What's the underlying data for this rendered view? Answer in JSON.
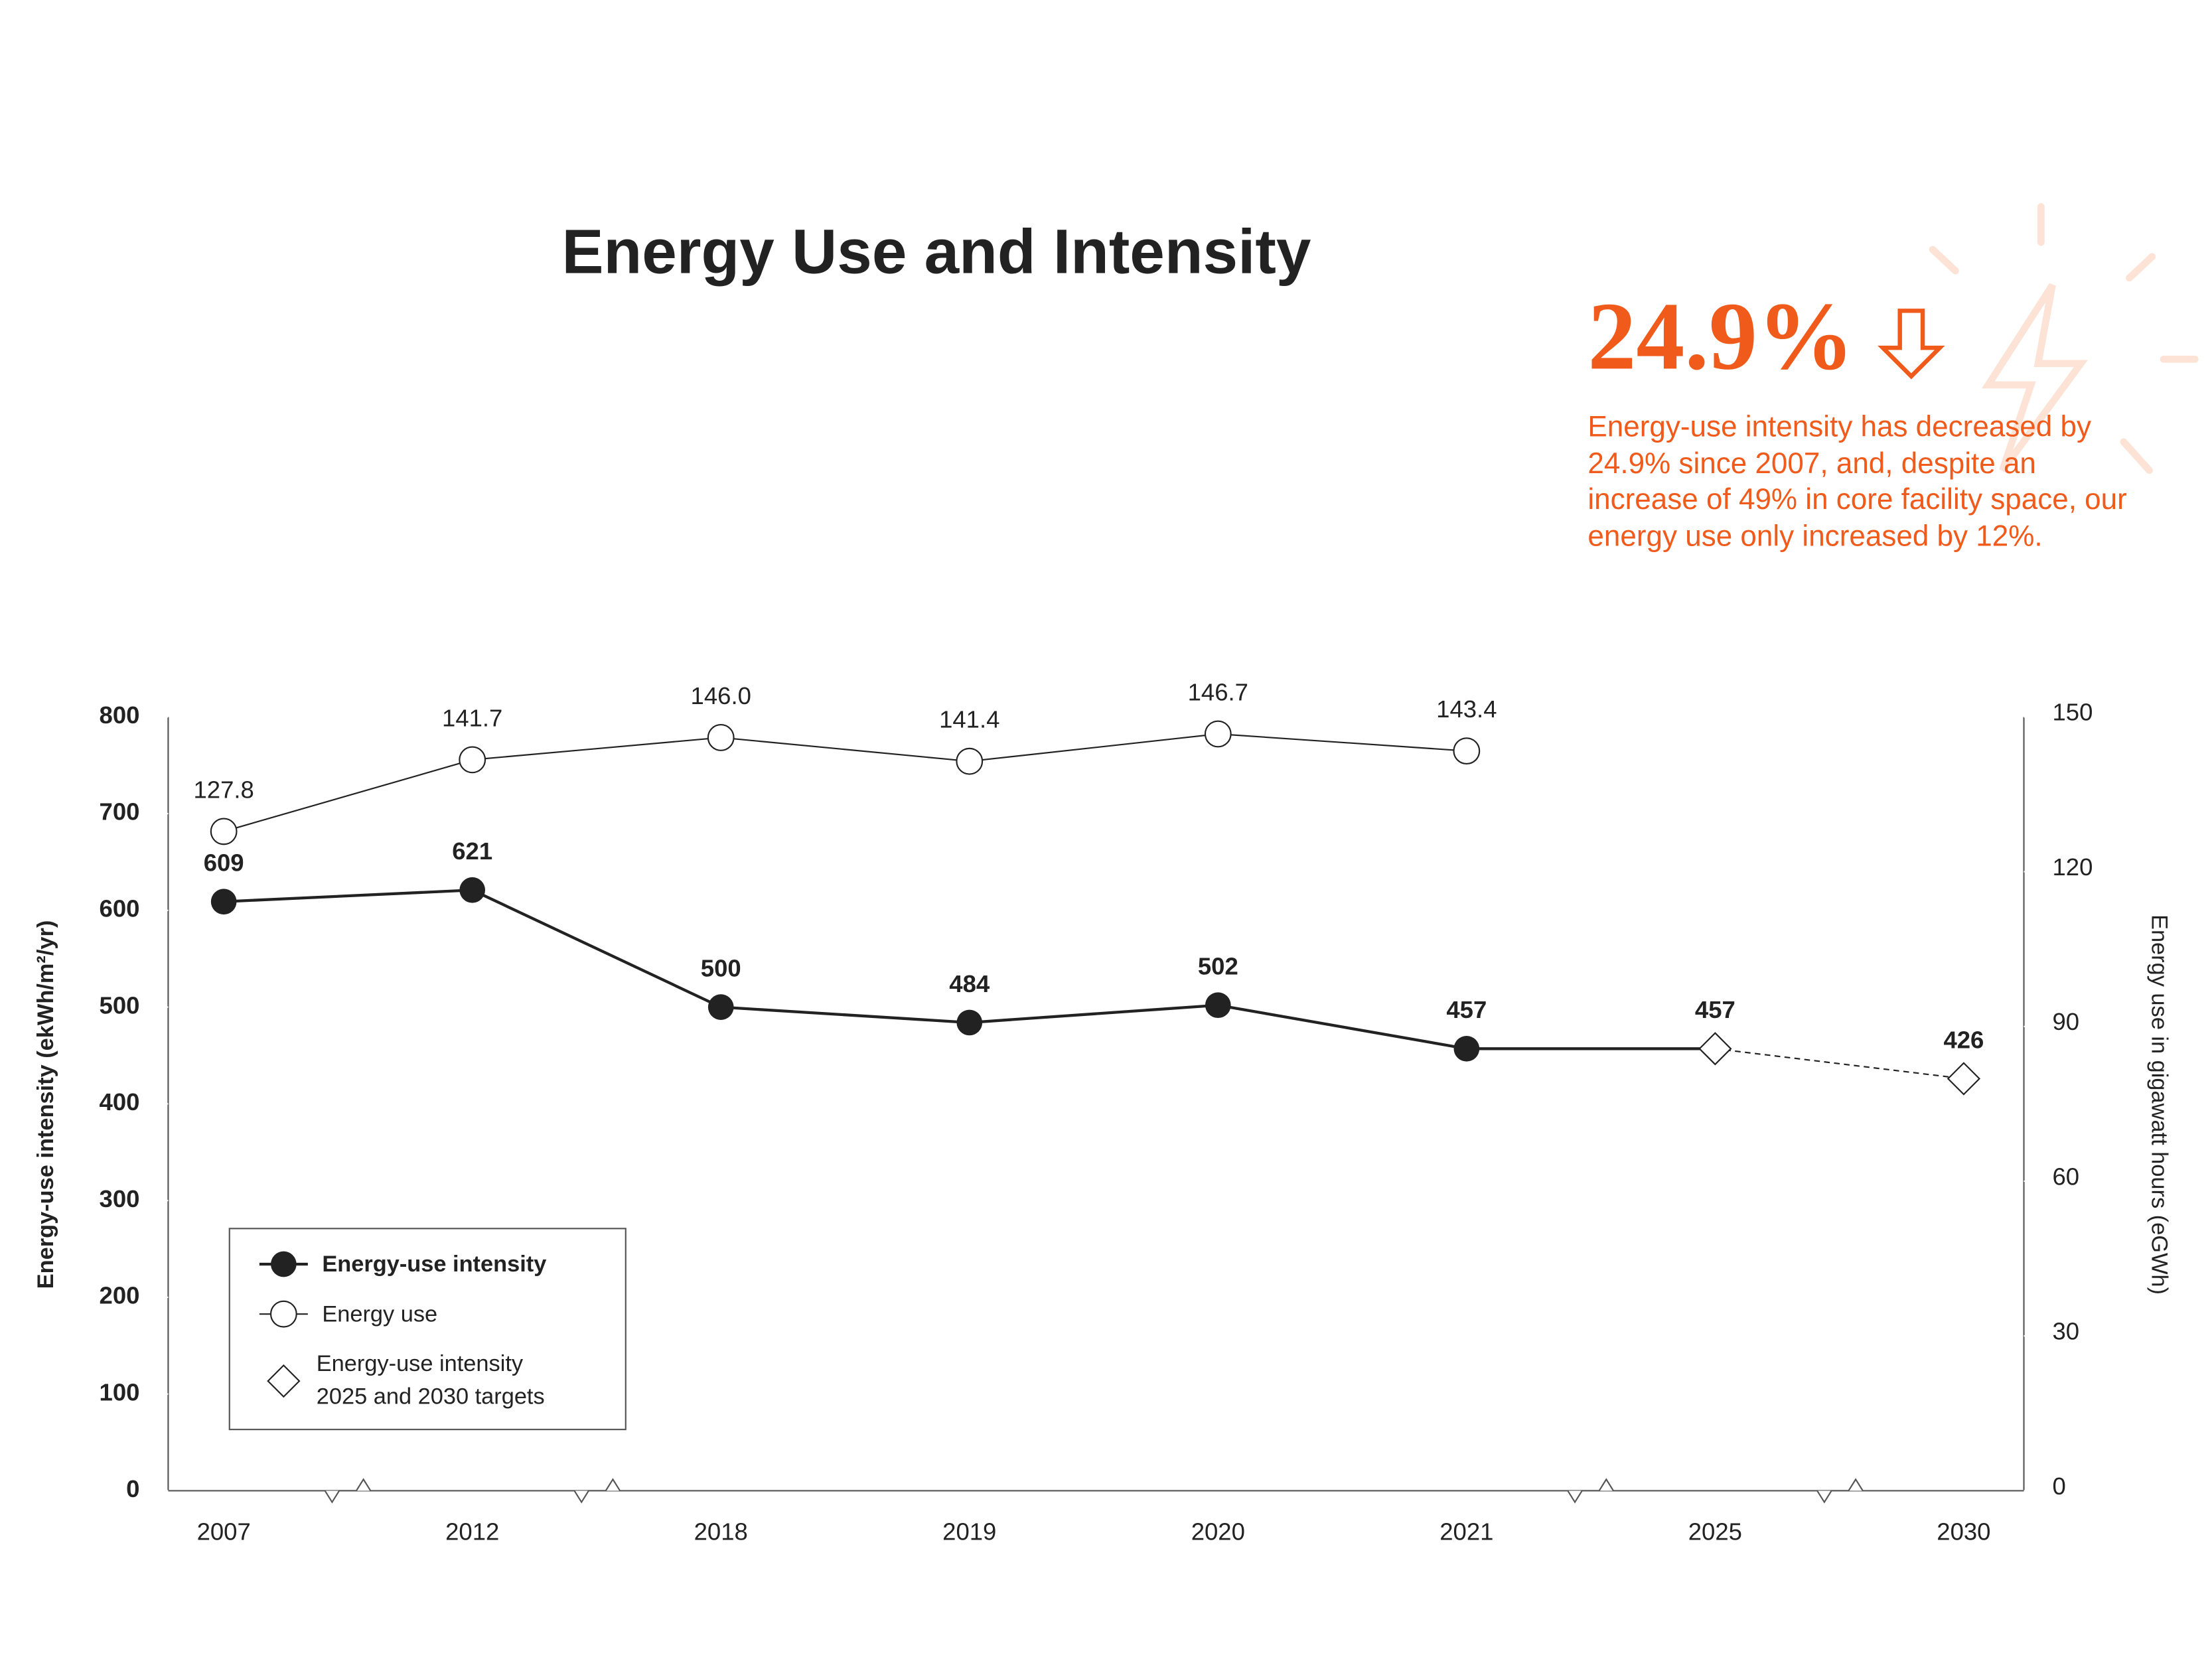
{
  "chart_data": {
    "type": "line",
    "title": "Energy Use and Intensity",
    "callout_value": "24.9%",
    "callout_text": "Energy-use intensity has decreased by 24.9% since 2007, and, despite an increase of 49% in core facility space, our energy use only increased by 12%.",
    "y_label": "Energy-use intensity (ekWh/m²/yr)",
    "y2_label": "Energy use in gigawatt hours (eGWh)",
    "categories": [
      "2007",
      "2012",
      "2018",
      "2019",
      "2020",
      "2021",
      "2025",
      "2030"
    ],
    "ylim": [
      0,
      800
    ],
    "yticks": [
      0,
      100,
      200,
      300,
      400,
      500,
      600,
      700,
      800
    ],
    "y2lim": [
      0,
      150
    ],
    "y2ticks": [
      0,
      30,
      60,
      90,
      120,
      150
    ],
    "series": [
      {
        "name": "Energy-use intensity",
        "color": "#222222",
        "values": [
          609,
          621,
          500,
          484,
          502,
          457,
          null,
          null
        ]
      },
      {
        "name": "Energy use",
        "color": "#222222",
        "axis": "y2",
        "values": [
          127.8,
          141.7,
          146.0,
          141.4,
          146.7,
          143.4,
          null,
          null
        ],
        "value_labels": [
          "127.8",
          "141.7",
          "146.0",
          "141.4",
          "146.7",
          "143.4",
          null,
          null
        ]
      },
      {
        "name": "Energy-use intensity 2025 and 2030 targets",
        "color": "#222222",
        "values": [
          null,
          null,
          null,
          null,
          null,
          null,
          457,
          426
        ]
      }
    ],
    "accent_color": "#f05a1a"
  }
}
